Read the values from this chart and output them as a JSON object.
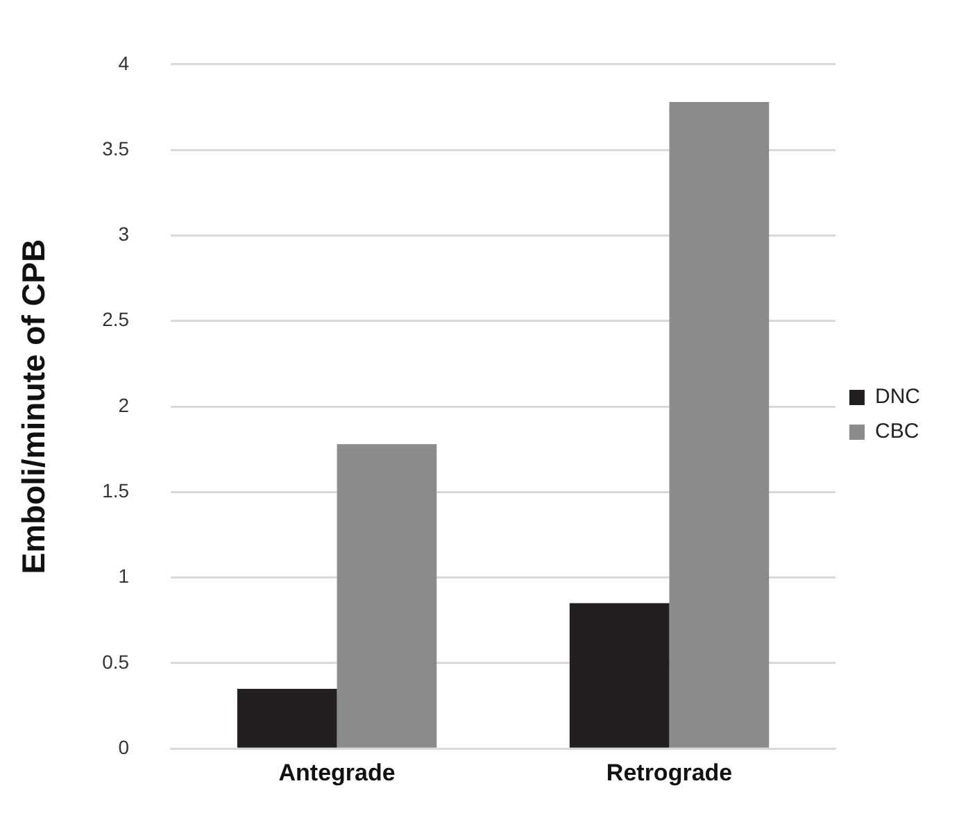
{
  "chart_data": {
    "type": "bar",
    "ylabel": "Emboli/minute of CPB",
    "categories": [
      "Antegrade",
      "Retrograde"
    ],
    "series": [
      {
        "name": "DNC",
        "color": "#231f20",
        "values": [
          0.35,
          0.85
        ]
      },
      {
        "name": "CBC",
        "color": "#8a8b8d",
        "values": [
          1.78,
          3.78
        ]
      }
    ],
    "ylim": [
      0,
      4
    ],
    "yticks": [
      0,
      0.5,
      1,
      1.5,
      2,
      2.5,
      3,
      3.5,
      4
    ],
    "grid": "y",
    "legend": "right"
  }
}
